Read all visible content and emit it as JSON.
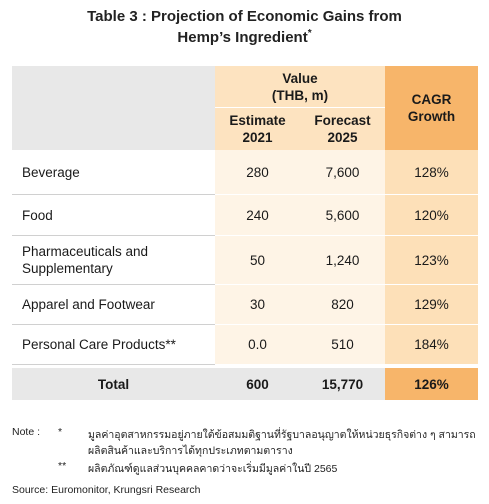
{
  "title": {
    "line1": "Table 3 : Projection of Economic Gains from",
    "line2": "Hemp’s Ingredient",
    "mark": "*"
  },
  "table": {
    "header": {
      "value": "Value",
      "unit": "(THB, m)",
      "columns": [
        {
          "name": "Estimate",
          "year": "2021"
        },
        {
          "name": "Forecast",
          "year": "2025"
        }
      ],
      "cagr": [
        "CAGR",
        "Growth"
      ]
    },
    "rows": [
      [
        "Beverage",
        "280",
        "7,600",
        "128%"
      ],
      [
        "Food",
        "240",
        "5,600",
        "120%"
      ],
      [
        "Pharmaceuticals and Supplementary",
        "50",
        "1,240",
        "123%"
      ],
      [
        "Apparel and Footwear",
        "30",
        "820",
        "129%"
      ],
      [
        "Personal Care Products**",
        "0.0",
        "510",
        "184%"
      ]
    ],
    "total": [
      "Total",
      "600",
      "15,770",
      "126%"
    ]
  },
  "notes": {
    "label": "Note :",
    "items": [
      {
        "mark": "*",
        "lines": [
          "มูลค่าอุตสาหกรรมอยู่ภายใต้ข้อสมมติฐานที่รัฐบาลอนุญาตให้หน่วยธุรกิจต่าง ๆ สามารถ",
          "ผลิตสินค้าและบริการได้ทุกประเภทตามตาราง"
        ]
      },
      {
        "mark": "**",
        "lines": [
          "ผลิตภัณฑ์ดูแลส่วนบุคคลคาดว่าจะเริ่มมีมูลค่าในปี 2565"
        ]
      }
    ]
  },
  "source": "Source: Euromonitor, Krungsri Research"
}
